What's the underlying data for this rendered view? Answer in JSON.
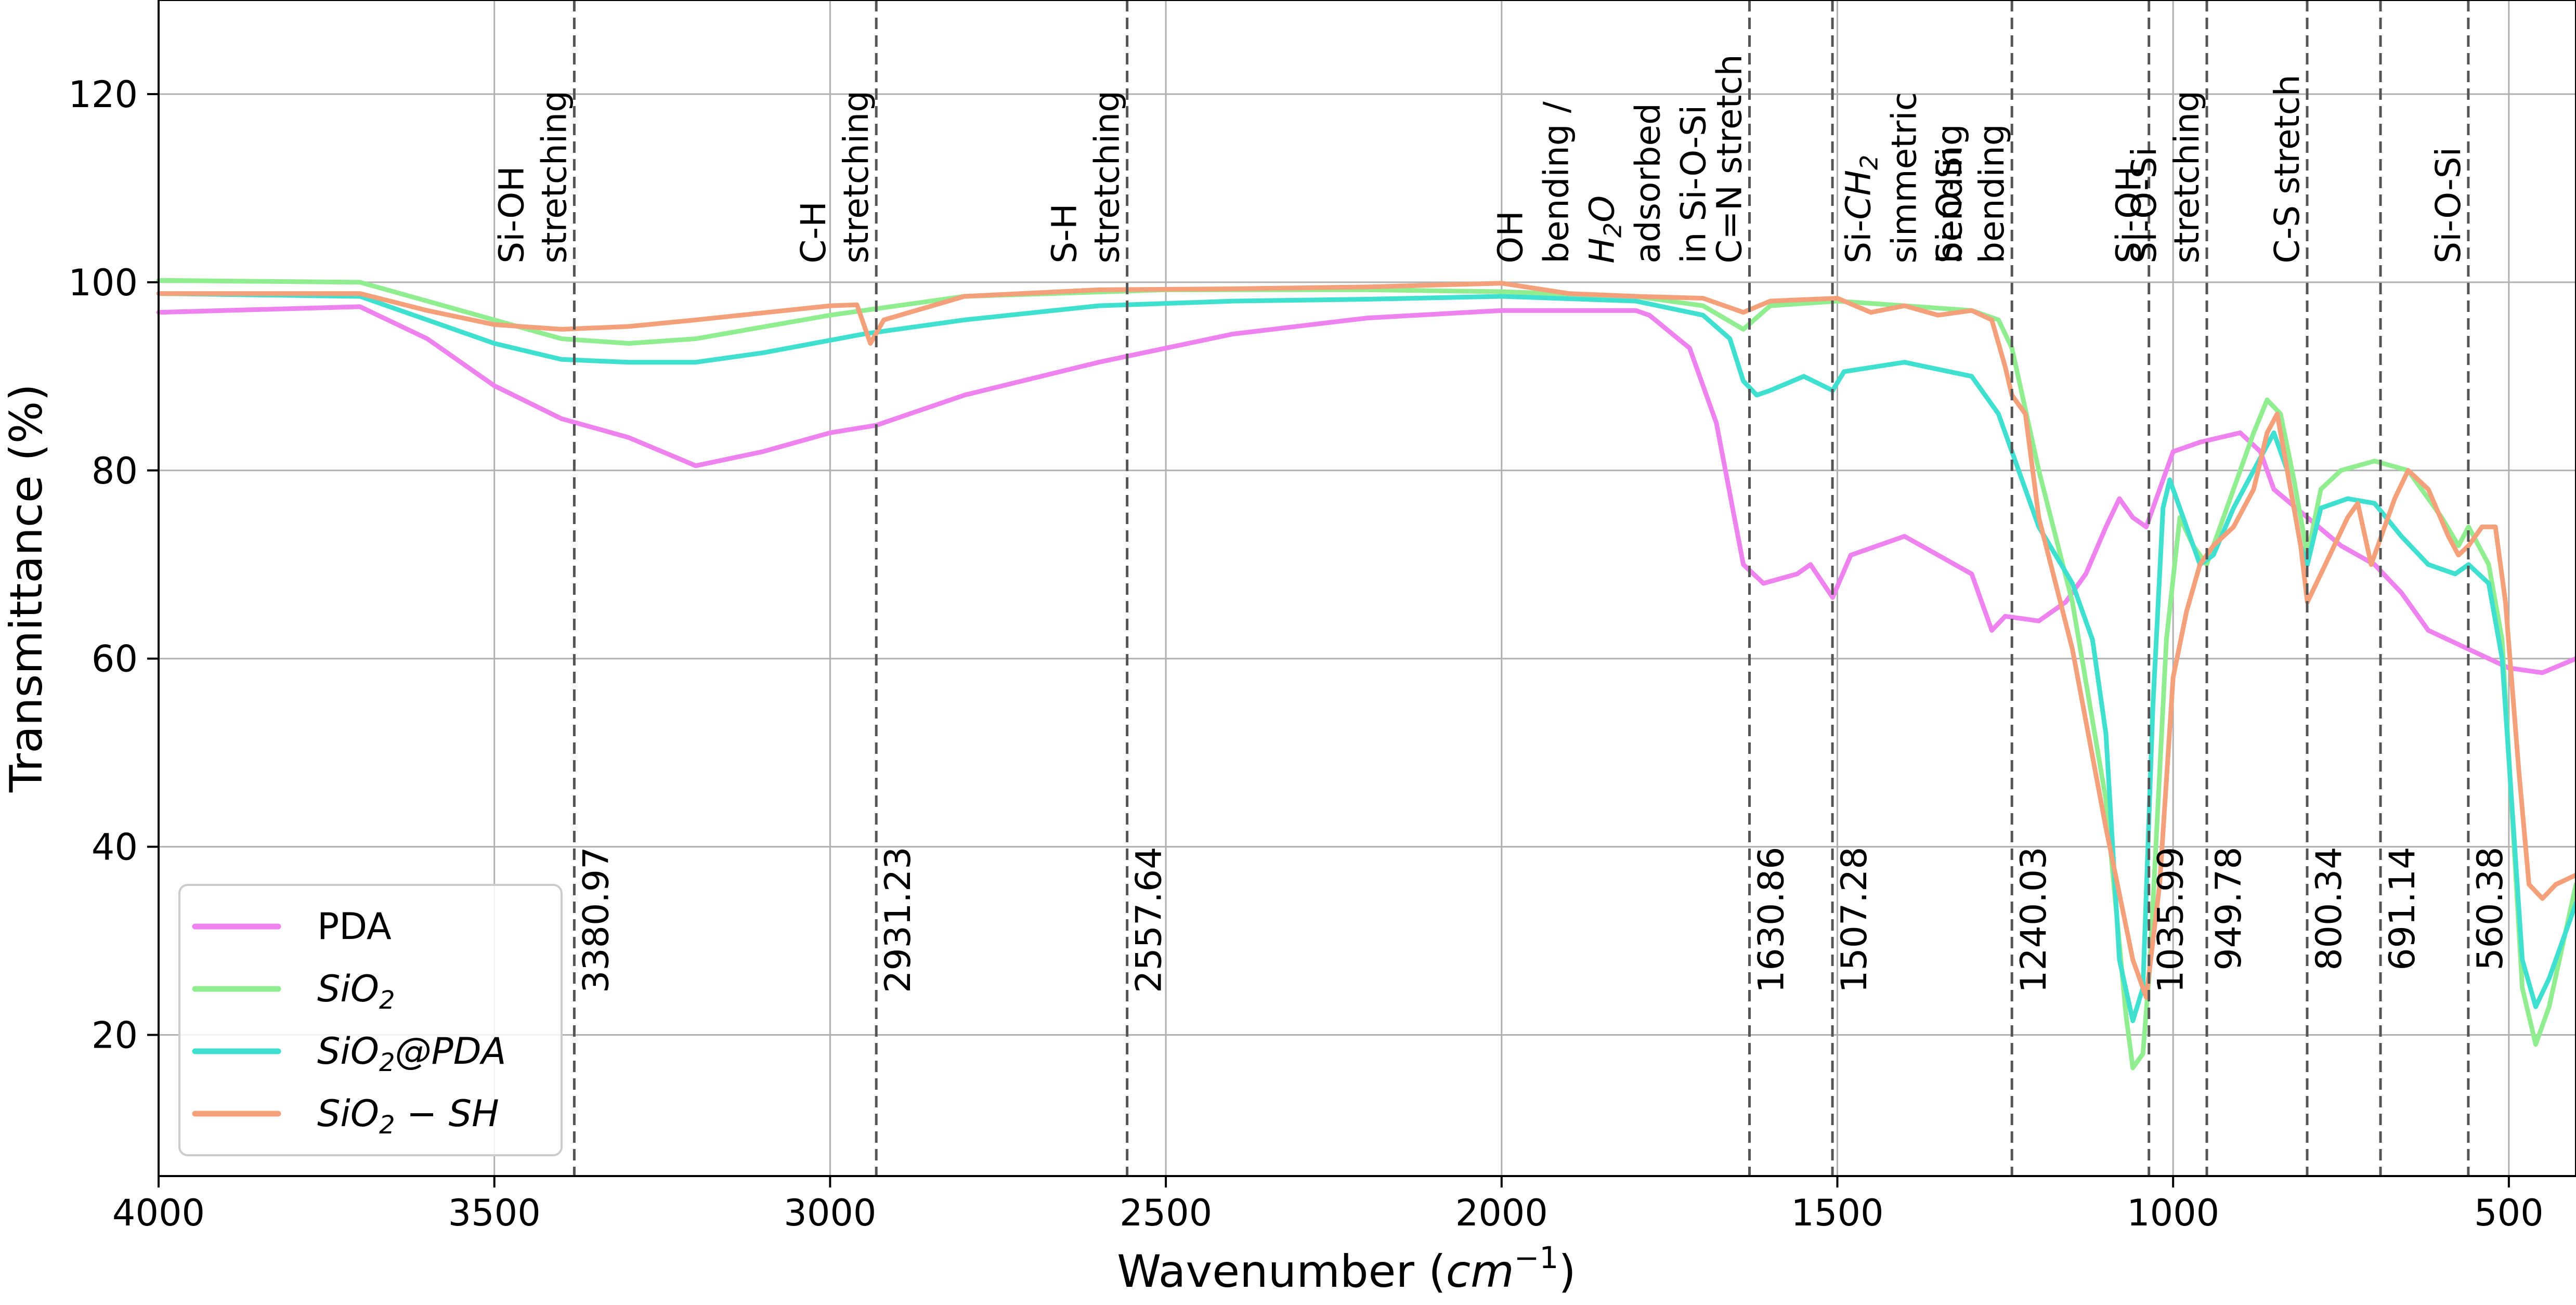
{
  "chart_data": {
    "type": "line",
    "xlabel": "Wavenumber",
    "xlabel_unit_base": "cm",
    "xlabel_unit_exp": "−1",
    "ylabel": "Transmittance (%)",
    "xlim": [
      4000,
      400
    ],
    "ylim": [
      5,
      130
    ],
    "x_ticks": [
      4000,
      3500,
      3000,
      2500,
      2000,
      1500,
      1000,
      500
    ],
    "y_ticks": [
      20,
      40,
      60,
      80,
      100,
      120
    ],
    "grid": true,
    "legend_position": "lower-left",
    "vlines": [
      {
        "x": 3380.97,
        "label": "3380.97",
        "annotation": [
          "Si-OH",
          "stretching"
        ]
      },
      {
        "x": 2931.23,
        "label": "2931.23",
        "annotation": [
          "C-H",
          "stretching"
        ]
      },
      {
        "x": 2557.64,
        "label": "2557.64",
        "annotation": [
          "S-H",
          "stretching"
        ]
      },
      {
        "x": 1630.86,
        "label": "1630.86",
        "annotation": [
          "C=N stretch"
        ]
      },
      {
        "x": 1507.28,
        "label": "1507.28",
        "annotation": []
      },
      {
        "x": 1240.03,
        "label": "1240.03",
        "annotation": [
          "Si-O-Si",
          "bending"
        ]
      },
      {
        "x": 1035.99,
        "label": "1035.99",
        "annotation": [
          "Si-OH"
        ]
      },
      {
        "x": 949.78,
        "label": "949.78",
        "annotation": [
          "Si-O-Si",
          "stretching"
        ]
      },
      {
        "x": 800.34,
        "label": "800.34",
        "annotation": [
          "C-S stretch"
        ]
      },
      {
        "x": 691.14,
        "label": "691.14",
        "annotation": []
      },
      {
        "x": 560.38,
        "label": "560.38",
        "annotation": [
          "Si-O-Si"
        ]
      }
    ],
    "extra_annotations": [
      {
        "x": 1850,
        "lines": [
          "OH",
          "bending /",
          "H2O",
          "adsorbed",
          "in Si-O-Si"
        ]
      },
      {
        "x": 1400,
        "lines": [
          "Si-CH2",
          "simmetric",
          "bending"
        ]
      }
    ],
    "series": [
      {
        "name": "PDA",
        "name_parts": {
          "base": "PDA",
          "sub": "",
          "rest": ""
        },
        "italic": false,
        "color": "#ee82ee",
        "points": [
          [
            4000,
            96.8
          ],
          [
            3700,
            97.4
          ],
          [
            3600,
            94
          ],
          [
            3500,
            89
          ],
          [
            3400,
            85.5
          ],
          [
            3300,
            83.5
          ],
          [
            3200,
            80.5
          ],
          [
            3100,
            82
          ],
          [
            3000,
            84
          ],
          [
            2931,
            84.8
          ],
          [
            2800,
            88
          ],
          [
            2600,
            91.5
          ],
          [
            2400,
            94.5
          ],
          [
            2200,
            96.2
          ],
          [
            2000,
            97
          ],
          [
            1800,
            97
          ],
          [
            1780,
            96.5
          ],
          [
            1720,
            93
          ],
          [
            1680,
            85
          ],
          [
            1640,
            70
          ],
          [
            1610,
            68
          ],
          [
            1560,
            69
          ],
          [
            1540,
            70
          ],
          [
            1507,
            66.5
          ],
          [
            1480,
            71
          ],
          [
            1400,
            73
          ],
          [
            1350,
            71
          ],
          [
            1300,
            69
          ],
          [
            1270,
            63
          ],
          [
            1250,
            64.5
          ],
          [
            1200,
            64
          ],
          [
            1160,
            66
          ],
          [
            1130,
            69
          ],
          [
            1100,
            74
          ],
          [
            1080,
            77
          ],
          [
            1060,
            75
          ],
          [
            1040,
            74
          ],
          [
            1000,
            82
          ],
          [
            960,
            83
          ],
          [
            900,
            84
          ],
          [
            870,
            82
          ],
          [
            850,
            78
          ],
          [
            800,
            75
          ],
          [
            750,
            72
          ],
          [
            700,
            70
          ],
          [
            660,
            67
          ],
          [
            620,
            63
          ],
          [
            560,
            61
          ],
          [
            500,
            59
          ],
          [
            450,
            58.5
          ],
          [
            400,
            60
          ]
        ]
      },
      {
        "name": "SiO2",
        "name_parts": {
          "base": "SiO",
          "sub": "2",
          "rest": ""
        },
        "italic": true,
        "color": "#90ee90",
        "points": [
          [
            4000,
            100.2
          ],
          [
            3700,
            100
          ],
          [
            3600,
            98
          ],
          [
            3500,
            96
          ],
          [
            3400,
            94
          ],
          [
            3300,
            93.5
          ],
          [
            3200,
            94
          ],
          [
            3000,
            96.5
          ],
          [
            2800,
            98.5
          ],
          [
            2500,
            99.2
          ],
          [
            2200,
            99.2
          ],
          [
            2000,
            99
          ],
          [
            1800,
            98.5
          ],
          [
            1700,
            97.5
          ],
          [
            1640,
            95
          ],
          [
            1600,
            97.5
          ],
          [
            1500,
            98
          ],
          [
            1400,
            97.5
          ],
          [
            1300,
            97
          ],
          [
            1260,
            96
          ],
          [
            1240,
            93
          ],
          [
            1200,
            80
          ],
          [
            1150,
            66
          ],
          [
            1100,
            45
          ],
          [
            1070,
            22
          ],
          [
            1060,
            16.5
          ],
          [
            1045,
            18
          ],
          [
            1035,
            27
          ],
          [
            1010,
            62
          ],
          [
            990,
            75
          ],
          [
            970,
            72
          ],
          [
            950,
            70
          ],
          [
            920,
            76
          ],
          [
            880,
            84
          ],
          [
            860,
            87.5
          ],
          [
            840,
            86
          ],
          [
            820,
            79
          ],
          [
            800,
            71
          ],
          [
            780,
            78
          ],
          [
            750,
            80
          ],
          [
            700,
            81
          ],
          [
            650,
            80
          ],
          [
            600,
            75
          ],
          [
            575,
            72
          ],
          [
            560,
            74
          ],
          [
            530,
            70
          ],
          [
            510,
            62
          ],
          [
            480,
            25
          ],
          [
            460,
            19
          ],
          [
            440,
            23
          ],
          [
            400,
            36
          ]
        ]
      },
      {
        "name": "SiO2@PDA",
        "name_parts": {
          "base": "SiO",
          "sub": "2",
          "rest": "@PDA"
        },
        "italic": true,
        "color": "#40e0d0",
        "points": [
          [
            4000,
            98.8
          ],
          [
            3700,
            98.5
          ],
          [
            3600,
            96
          ],
          [
            3500,
            93.5
          ],
          [
            3400,
            91.8
          ],
          [
            3300,
            91.5
          ],
          [
            3200,
            91.5
          ],
          [
            3100,
            92.5
          ],
          [
            2950,
            94.5
          ],
          [
            2800,
            96
          ],
          [
            2600,
            97.5
          ],
          [
            2400,
            98
          ],
          [
            2200,
            98.2
          ],
          [
            2000,
            98.5
          ],
          [
            1800,
            98
          ],
          [
            1700,
            96.5
          ],
          [
            1660,
            94
          ],
          [
            1640,
            89.5
          ],
          [
            1620,
            88
          ],
          [
            1600,
            88.5
          ],
          [
            1550,
            90
          ],
          [
            1507,
            88.5
          ],
          [
            1490,
            90.5
          ],
          [
            1400,
            91.5
          ],
          [
            1300,
            90
          ],
          [
            1260,
            86
          ],
          [
            1240,
            82
          ],
          [
            1200,
            74
          ],
          [
            1150,
            68
          ],
          [
            1120,
            62
          ],
          [
            1100,
            52
          ],
          [
            1080,
            28
          ],
          [
            1060,
            21.5
          ],
          [
            1045,
            25
          ],
          [
            1030,
            55
          ],
          [
            1015,
            76
          ],
          [
            1005,
            79
          ],
          [
            990,
            76
          ],
          [
            960,
            70
          ],
          [
            940,
            71
          ],
          [
            910,
            76
          ],
          [
            880,
            80
          ],
          [
            850,
            84
          ],
          [
            830,
            80
          ],
          [
            810,
            72
          ],
          [
            800,
            70
          ],
          [
            780,
            76
          ],
          [
            740,
            77
          ],
          [
            700,
            76.5
          ],
          [
            660,
            73
          ],
          [
            620,
            70
          ],
          [
            580,
            69
          ],
          [
            560,
            70
          ],
          [
            530,
            68
          ],
          [
            510,
            60
          ],
          [
            480,
            28
          ],
          [
            460,
            23
          ],
          [
            440,
            26
          ],
          [
            400,
            34
          ]
        ]
      },
      {
        "name": "SiO2 − SH",
        "name_parts": {
          "base": "SiO",
          "sub": "2",
          "rest": " − SH"
        },
        "italic": true,
        "color": "#f4a07a",
        "points": [
          [
            4000,
            98.8
          ],
          [
            3700,
            98.8
          ],
          [
            3600,
            97
          ],
          [
            3500,
            95.5
          ],
          [
            3400,
            95
          ],
          [
            3300,
            95.3
          ],
          [
            3200,
            96
          ],
          [
            3000,
            97.5
          ],
          [
            2960,
            97.6
          ],
          [
            2940,
            93.5
          ],
          [
            2920,
            96
          ],
          [
            2800,
            98.5
          ],
          [
            2600,
            99.2
          ],
          [
            2400,
            99.3
          ],
          [
            2200,
            99.5
          ],
          [
            2100,
            99.7
          ],
          [
            2000,
            99.9
          ],
          [
            1900,
            98.8
          ],
          [
            1800,
            98.5
          ],
          [
            1700,
            98.3
          ],
          [
            1640,
            96.8
          ],
          [
            1600,
            98
          ],
          [
            1500,
            98.3
          ],
          [
            1450,
            96.8
          ],
          [
            1400,
            97.5
          ],
          [
            1350,
            96.5
          ],
          [
            1300,
            97
          ],
          [
            1270,
            96
          ],
          [
            1250,
            91
          ],
          [
            1240,
            88
          ],
          [
            1220,
            86
          ],
          [
            1200,
            75
          ],
          [
            1150,
            61
          ],
          [
            1100,
            42
          ],
          [
            1060,
            28
          ],
          [
            1040,
            24
          ],
          [
            1020,
            36
          ],
          [
            1000,
            58
          ],
          [
            980,
            65
          ],
          [
            960,
            70
          ],
          [
            940,
            72
          ],
          [
            910,
            74
          ],
          [
            880,
            78
          ],
          [
            860,
            84
          ],
          [
            845,
            86
          ],
          [
            830,
            80
          ],
          [
            810,
            72
          ],
          [
            800,
            66
          ],
          [
            780,
            69
          ],
          [
            760,
            72
          ],
          [
            740,
            75
          ],
          [
            725,
            76.5
          ],
          [
            705,
            70
          ],
          [
            690,
            73
          ],
          [
            670,
            77
          ],
          [
            650,
            80
          ],
          [
            620,
            78
          ],
          [
            590,
            73
          ],
          [
            575,
            71
          ],
          [
            560,
            72
          ],
          [
            540,
            74
          ],
          [
            520,
            74
          ],
          [
            505,
            66
          ],
          [
            485,
            48
          ],
          [
            470,
            36
          ],
          [
            450,
            34.5
          ],
          [
            430,
            36
          ],
          [
            400,
            37
          ]
        ]
      }
    ]
  }
}
